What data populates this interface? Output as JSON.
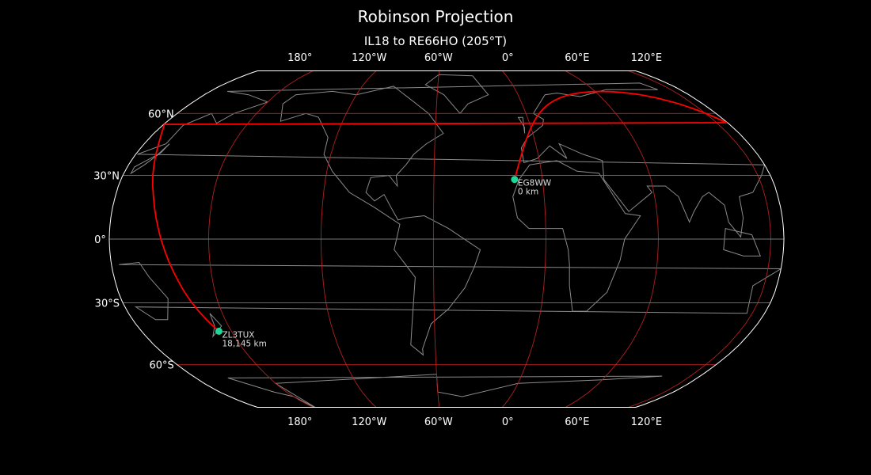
{
  "title": "Robinson Projection",
  "subtitle": "IL18 to RE66HO (205°T)",
  "projection": {
    "type": "Robinson",
    "central_longitude": -53
  },
  "colors": {
    "background": "#000000",
    "coastline": "#8a8a8a",
    "graticule_major": "#b02020",
    "graticule_minor": "#777777",
    "path": "#ff0000",
    "marker": "#1ed69a",
    "outline": "#ffffff"
  },
  "lon_ticks": [
    {
      "lon": 180,
      "label": "180°"
    },
    {
      "lon": -120,
      "label": "120°W"
    },
    {
      "lon": -60,
      "label": "60°W"
    },
    {
      "lon": 0,
      "label": "0°"
    },
    {
      "lon": 60,
      "label": "60°E"
    },
    {
      "lon": 120,
      "label": "120°E"
    }
  ],
  "lat_ticks": [
    {
      "lat": 60,
      "label": "60°N"
    },
    {
      "lat": 30,
      "label": "30°N"
    },
    {
      "lat": 0,
      "label": "0°"
    },
    {
      "lat": -30,
      "label": "30°S"
    },
    {
      "lat": -60,
      "label": "60°S"
    }
  ],
  "points": [
    {
      "name": "EG8WW",
      "distance": "0 km",
      "lat": 28.1,
      "lon": -15.4
    },
    {
      "name": "ZL3TUX",
      "distance": "18,145 km",
      "lat": -43.5,
      "lon": 172.6
    }
  ]
}
